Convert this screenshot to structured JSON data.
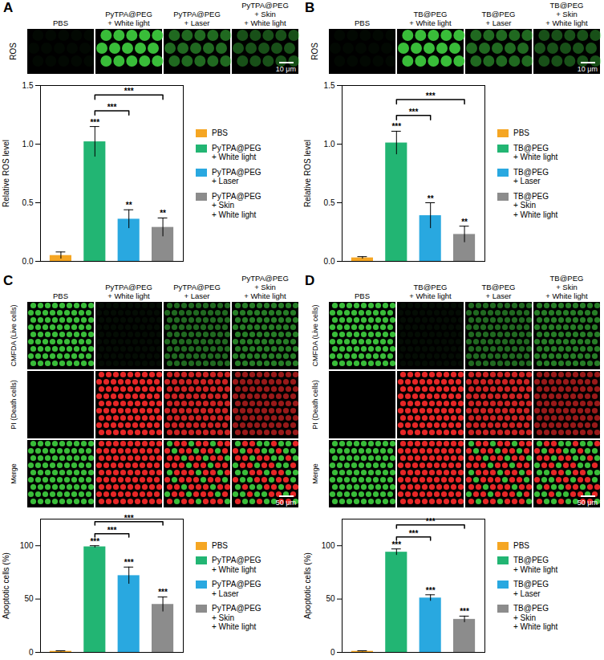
{
  "chart_data": [
    {
      "type": "bar",
      "y_label": "Relative ROS level",
      "categories": [
        "PBS",
        "PyTPA@PEG + White light",
        "PyTPA@PEG + Laser",
        "PyTPA@PEG + Skin + White light"
      ],
      "values": [
        0.05,
        1.02,
        0.36,
        0.29
      ],
      "errors": [
        0.03,
        0.13,
        0.08,
        0.08
      ],
      "colors": [
        "#f5a623",
        "#22b573",
        "#29a8e0",
        "#8c8c8c"
      ],
      "ylim": [
        0,
        1.5
      ],
      "yticks": [
        {
          "value": 0,
          "label": "0.0"
        },
        {
          "value": 0.5,
          "label": "0.5"
        },
        {
          "value": 1,
          "label": "1.0"
        },
        {
          "value": 1.5,
          "label": "1.5"
        }
      ],
      "tick_labels": "y",
      "legend": "right",
      "significance": [
        null,
        "***",
        "**",
        "**"
      ],
      "brackets": [
        {
          "from": "PyTPA@PEG + White light",
          "to": "PyTPA@PEG + Laser",
          "label": "***"
        },
        {
          "from": "PyTPA@PEG + White light",
          "to": "PyTPA@PEG + Skin + White light",
          "label": "***"
        }
      ]
    },
    {
      "type": "bar",
      "y_label": "Relative ROS level",
      "categories": [
        "PBS",
        "TB@PEG + White light",
        "TB@PEG + Laser",
        "TB@PEG + Skin + White light"
      ],
      "values": [
        0.03,
        1.01,
        0.39,
        0.23
      ],
      "errors": [
        0.01,
        0.1,
        0.11,
        0.07
      ],
      "colors": [
        "#f5a623",
        "#22b573",
        "#29a8e0",
        "#8c8c8c"
      ],
      "ylim": [
        0,
        1.5
      ],
      "yticks": [
        {
          "value": 0,
          "label": "0.0"
        },
        {
          "value": 0.5,
          "label": "0.5"
        },
        {
          "value": 1,
          "label": "1.0"
        },
        {
          "value": 1.5,
          "label": "1.5"
        }
      ],
      "tick_labels": "y",
      "legend": "right",
      "significance": [
        null,
        "***",
        "**",
        "**"
      ],
      "brackets": [
        {
          "from": "TB@PEG + White light",
          "to": "TB@PEG + Laser",
          "label": "***"
        },
        {
          "from": "TB@PEG + White light",
          "to": "TB@PEG + Skin + White light",
          "label": "***"
        }
      ]
    },
    {
      "type": "bar",
      "y_label": "Apoptotic cells (%)",
      "categories": [
        "PBS",
        "PyTPA@PEG + White light",
        "PyTPA@PEG + Laser",
        "PyTPA@PEG + Skin + White light"
      ],
      "values": [
        1,
        99,
        72,
        45
      ],
      "errors": [
        0.5,
        1,
        8,
        7
      ],
      "colors": [
        "#f5a623",
        "#22b573",
        "#29a8e0",
        "#8c8c8c"
      ],
      "ylim": [
        0,
        125
      ],
      "yticks": [
        0,
        50,
        100
      ],
      "tick_labels": "y",
      "legend": "right",
      "significance": [
        null,
        "***",
        "***",
        "***"
      ],
      "brackets": [
        {
          "from": "PyTPA@PEG + White light",
          "to": "PyTPA@PEG + Laser",
          "label": "***"
        },
        {
          "from": "PyTPA@PEG + White light",
          "to": "PyTPA@PEG + Skin + White light",
          "label": "***"
        }
      ]
    },
    {
      "type": "bar",
      "y_label": "Apoptotic cells (%)",
      "categories": [
        "PBS",
        "TB@PEG + White light",
        "TB@PEG + Laser",
        "TB@PEG + Skin + White light"
      ],
      "values": [
        1,
        94,
        51,
        31
      ],
      "errors": [
        0.5,
        3,
        3,
        3
      ],
      "colors": [
        "#f5a623",
        "#22b573",
        "#29a8e0",
        "#8c8c8c"
      ],
      "ylim": [
        0,
        125
      ],
      "yticks": [
        0,
        50,
        100
      ],
      "tick_labels": "y",
      "legend": "right",
      "significance": [
        null,
        "***",
        "***",
        "***"
      ],
      "brackets": [
        {
          "from": "TB@PEG + White light",
          "to": "TB@PEG + Laser",
          "label": "***"
        },
        {
          "from": "TB@PEG + White light",
          "to": "TB@PEG + Skin + White light",
          "label": "***"
        }
      ]
    }
  ],
  "panels": [
    {
      "letter": "A",
      "column_headers": [
        "PBS",
        "PyTPA@PEG + White light",
        "PyTPA@PEG + Laser",
        "PyTPA@PEG + Skin + White light"
      ],
      "row_labels": [
        "ROS"
      ],
      "scale_bar": "10 μm"
    },
    {
      "letter": "B",
      "column_headers": [
        "PBS",
        "TB@PEG + White light",
        "TB@PEG + Laser",
        "TB@PEG + Skin + White light"
      ],
      "row_labels": [
        "ROS"
      ],
      "scale_bar": "10 μm"
    },
    {
      "letter": "C",
      "column_headers": [
        "PBS",
        "PyTPA@PEG + White light",
        "PyTPA@PEG + Laser",
        "PyTPA@PEG + Skin + White light"
      ],
      "row_labels": [
        "CMFDA (Live cells)",
        "PI (Death cells)",
        "Merge"
      ],
      "scale_bar": "50 μm"
    },
    {
      "letter": "D",
      "column_headers": [
        "PBS",
        "TB@PEG + White light",
        "TB@PEG + Laser",
        "TB@PEG + Skin + White light"
      ],
      "row_labels": [
        "CMFDA (Live cells)",
        "PI (Death cells)",
        "Merge"
      ],
      "scale_bar": "50 μm"
    }
  ]
}
